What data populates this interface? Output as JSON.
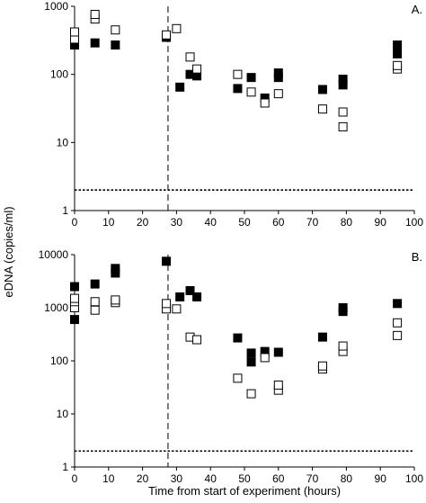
{
  "figure": {
    "ylabel": "eDNA (copies/ml)",
    "xlabel": "Time from start of experiment (hours)"
  },
  "chart_data": [
    {
      "type": "scatter",
      "panel_label": "A.",
      "x_scale": "linear",
      "y_scale": "log",
      "xlim": [
        0,
        100
      ],
      "ylim": [
        1,
        1000
      ],
      "xticks": [
        0,
        10,
        20,
        30,
        40,
        50,
        60,
        70,
        80,
        90,
        100
      ],
      "yticks": [
        1,
        10,
        100,
        1000
      ],
      "grid": false,
      "vertical_line": {
        "x": 27.5,
        "style": "dashed"
      },
      "horizontal_line": {
        "y": 2,
        "style": "dotted"
      },
      "series": [
        {
          "marker": "filled-square",
          "points": [
            [
              0,
              270
            ],
            [
              0,
              370
            ],
            [
              6,
              290
            ],
            [
              12,
              270
            ],
            [
              27,
              350
            ],
            [
              31,
              65
            ],
            [
              34,
              100
            ],
            [
              36,
              95
            ],
            [
              48,
              62
            ],
            [
              52,
              90
            ],
            [
              56,
              45
            ],
            [
              60,
              90
            ],
            [
              60,
              105
            ],
            [
              73,
              60
            ],
            [
              79,
              70
            ],
            [
              79,
              85
            ],
            [
              95,
              200
            ],
            [
              95,
              270
            ]
          ]
        },
        {
          "marker": "open-square",
          "points": [
            [
              0,
              330
            ],
            [
              0,
              420
            ],
            [
              6,
              650
            ],
            [
              6,
              760
            ],
            [
              12,
              450
            ],
            [
              27,
              380
            ],
            [
              30,
              470
            ],
            [
              34,
              180
            ],
            [
              36,
              120
            ],
            [
              48,
              100
            ],
            [
              52,
              55
            ],
            [
              56,
              38
            ],
            [
              60,
              52
            ],
            [
              73,
              31
            ],
            [
              79,
              28
            ],
            [
              79,
              17
            ],
            [
              95,
              120
            ],
            [
              95,
              135
            ]
          ]
        }
      ]
    },
    {
      "type": "scatter",
      "panel_label": "B.",
      "x_scale": "linear",
      "y_scale": "log",
      "xlim": [
        0,
        100
      ],
      "ylim": [
        1,
        10000
      ],
      "xticks": [
        0,
        10,
        20,
        30,
        40,
        50,
        60,
        70,
        80,
        90,
        100
      ],
      "yticks": [
        1,
        10,
        100,
        1000,
        10000
      ],
      "grid": false,
      "vertical_line": {
        "x": 27.5,
        "style": "dashed"
      },
      "horizontal_line": {
        "y": 2,
        "style": "dotted"
      },
      "series": [
        {
          "marker": "filled-square",
          "points": [
            [
              0,
              2500
            ],
            [
              0,
              600
            ],
            [
              6,
              2800
            ],
            [
              12,
              4500
            ],
            [
              12,
              5500
            ],
            [
              27,
              7500
            ],
            [
              31,
              1600
            ],
            [
              34,
              2100
            ],
            [
              36,
              1600
            ],
            [
              48,
              270
            ],
            [
              52,
              95
            ],
            [
              52,
              140
            ],
            [
              56,
              150
            ],
            [
              60,
              145
            ],
            [
              73,
              280
            ],
            [
              79,
              850
            ],
            [
              79,
              1000
            ],
            [
              95,
              1200
            ]
          ]
        },
        {
          "marker": "open-square",
          "points": [
            [
              0,
              1000
            ],
            [
              0,
              1300
            ],
            [
              0,
              1500
            ],
            [
              6,
              900
            ],
            [
              6,
              1300
            ],
            [
              12,
              1250
            ],
            [
              12,
              1400
            ],
            [
              27,
              950
            ],
            [
              27,
              1200
            ],
            [
              30,
              950
            ],
            [
              34,
              280
            ],
            [
              36,
              250
            ],
            [
              48,
              47
            ],
            [
              52,
              24
            ],
            [
              56,
              115
            ],
            [
              60,
              28
            ],
            [
              60,
              35
            ],
            [
              73,
              70
            ],
            [
              73,
              80
            ],
            [
              79,
              150
            ],
            [
              79,
              190
            ],
            [
              95,
              300
            ],
            [
              95,
              520
            ]
          ]
        }
      ]
    }
  ]
}
